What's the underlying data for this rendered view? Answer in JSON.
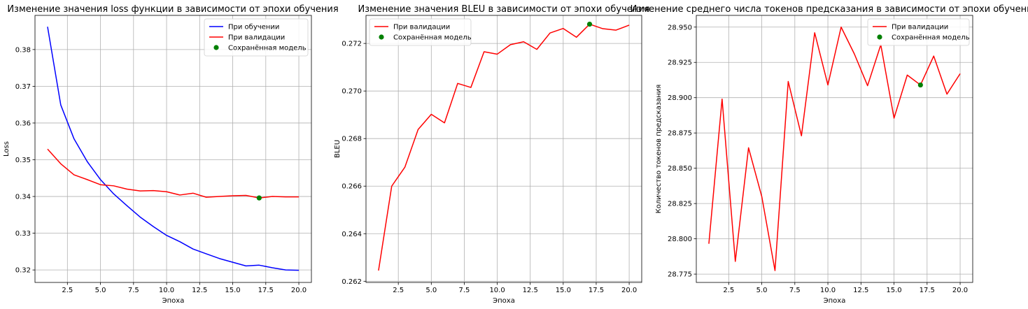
{
  "chart_data": [
    {
      "type": "line",
      "title": "Изменение значения loss функции в зависимости от эпохи обучения",
      "xlabel": "Эпоха",
      "ylabel": "Loss",
      "xlim": [
        0.05,
        20.95
      ],
      "ylim": [
        0.3166,
        0.3893
      ],
      "xticks": [
        2.5,
        5.0,
        7.5,
        10.0,
        12.5,
        15.0,
        17.5,
        20.0
      ],
      "xtick_labels": [
        "2.5",
        "5.0",
        "7.5",
        "10.0",
        "12.5",
        "15.0",
        "17.5",
        "20.0"
      ],
      "yticks": [
        0.32,
        0.33,
        0.34,
        0.35,
        0.36,
        0.37,
        0.38
      ],
      "ytick_labels": [
        "0.32",
        "0.33",
        "0.34",
        "0.35",
        "0.36",
        "0.37",
        "0.38"
      ],
      "grid": true,
      "legend_position": "top-right",
      "series": [
        {
          "name": "При обучении",
          "color": "#0000ff",
          "x": [
            1,
            2,
            3,
            4,
            5,
            6,
            7,
            8,
            9,
            10,
            11,
            12,
            13,
            14,
            15,
            16,
            17,
            18,
            19,
            20
          ],
          "y": [
            0.3862,
            0.3649,
            0.3557,
            0.3495,
            0.3446,
            0.3407,
            0.3375,
            0.3344,
            0.3318,
            0.3294,
            0.3277,
            0.3257,
            0.3244,
            0.3231,
            0.3221,
            0.3211,
            0.3213,
            0.3206,
            0.32,
            0.3199
          ]
        },
        {
          "name": "При валидации",
          "color": "#ff0000",
          "x": [
            1,
            2,
            3,
            4,
            5,
            6,
            7,
            8,
            9,
            10,
            11,
            12,
            13,
            14,
            15,
            16,
            17,
            18,
            19,
            20
          ],
          "y": [
            0.3529,
            0.3489,
            0.3459,
            0.3446,
            0.3432,
            0.3429,
            0.342,
            0.3415,
            0.3416,
            0.3413,
            0.3404,
            0.3409,
            0.3398,
            0.34,
            0.3402,
            0.3403,
            0.3396,
            0.34,
            0.3399,
            0.3399
          ]
        }
      ],
      "points": [
        {
          "name": "Сохранённая модель",
          "color": "#008000",
          "x": 17,
          "y": 0.3396
        }
      ]
    },
    {
      "type": "line",
      "title": "Изменение значения BLEU в зависимости от эпохи обучения",
      "xlabel": "Эпоха",
      "ylabel": "BLEU",
      "xlim": [
        0.05,
        20.95
      ],
      "ylim": [
        0.26195,
        0.27318
      ],
      "xticks": [
        2.5,
        5.0,
        7.5,
        10.0,
        12.5,
        15.0,
        17.5,
        20.0
      ],
      "xtick_labels": [
        "2.5",
        "5.0",
        "7.5",
        "10.0",
        "12.5",
        "15.0",
        "17.5",
        "20.0"
      ],
      "yticks": [
        0.262,
        0.264,
        0.266,
        0.268,
        0.27,
        0.272
      ],
      "ytick_labels": [
        "0.262",
        "0.264",
        "0.266",
        "0.268",
        "0.270",
        "0.272"
      ],
      "grid": true,
      "legend_position": "top-left",
      "series": [
        {
          "name": "При валидации",
          "color": "#ff0000",
          "x": [
            1,
            2,
            3,
            4,
            5,
            6,
            7,
            8,
            9,
            10,
            11,
            12,
            13,
            14,
            15,
            16,
            17,
            18,
            19,
            20
          ],
          "y": [
            0.26245,
            0.266,
            0.2668,
            0.26838,
            0.26902,
            0.26866,
            0.27032,
            0.27015,
            0.27165,
            0.27155,
            0.27195,
            0.27207,
            0.27175,
            0.27244,
            0.27263,
            0.27226,
            0.27281,
            0.27262,
            0.27256,
            0.27277
          ]
        }
      ],
      "points": [
        {
          "name": "Сохранённая модель",
          "color": "#008000",
          "x": 17,
          "y": 0.27281
        }
      ]
    },
    {
      "type": "line",
      "title": "Изменение среднего числа токенов предсказания в зависимости от эпохи обучения",
      "xlabel": "Эпоха",
      "ylabel": "Количество токенов предсказания",
      "xlim": [
        0.05,
        20.95
      ],
      "ylim": [
        28.7691,
        28.9583
      ],
      "xticks": [
        2.5,
        5.0,
        7.5,
        10.0,
        12.5,
        15.0,
        17.5,
        20.0
      ],
      "xtick_labels": [
        "2.5",
        "5.0",
        "7.5",
        "10.0",
        "12.5",
        "15.0",
        "17.5",
        "20.0"
      ],
      "yticks": [
        28.775,
        28.8,
        28.825,
        28.85,
        28.875,
        28.9,
        28.925,
        28.95
      ],
      "ytick_labels": [
        "28.775",
        "28.800",
        "28.825",
        "28.850",
        "28.875",
        "28.900",
        "28.925",
        "28.950"
      ],
      "grid": true,
      "legend_position": "top-right",
      "series": [
        {
          "name": "При валидации",
          "color": "#ff0000",
          "x": [
            1,
            2,
            3,
            4,
            5,
            6,
            7,
            8,
            9,
            10,
            11,
            12,
            13,
            14,
            15,
            16,
            17,
            18,
            19,
            20
          ],
          "y": [
            28.7965,
            28.899,
            28.784,
            28.8645,
            28.83,
            28.7775,
            28.9115,
            28.873,
            28.946,
            28.909,
            28.95,
            28.931,
            28.9085,
            28.9375,
            28.8855,
            28.916,
            28.909,
            28.9295,
            28.9025,
            28.917
          ]
        }
      ],
      "points": [
        {
          "name": "Сохранённая модель",
          "color": "#008000",
          "x": 17,
          "y": 28.909
        }
      ]
    }
  ]
}
